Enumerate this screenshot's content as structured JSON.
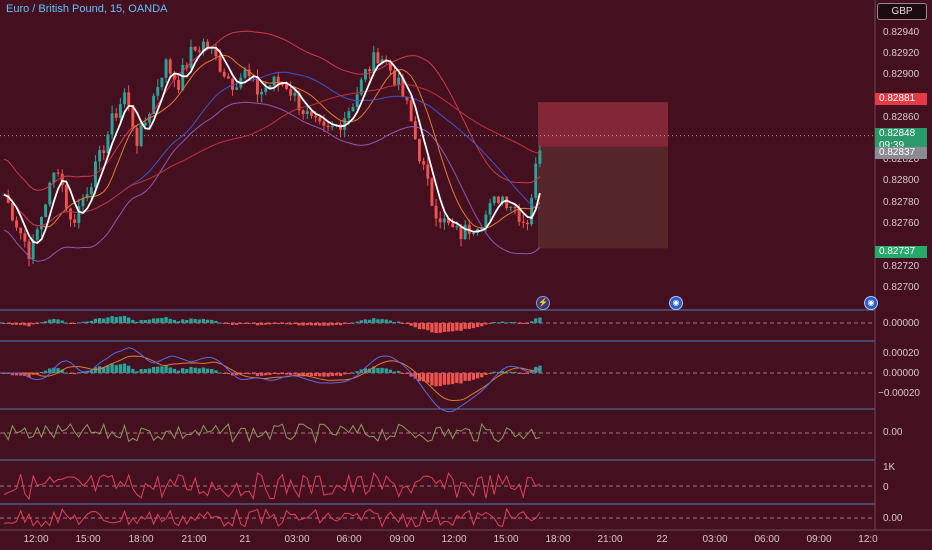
{
  "title": "Euro / British Pound, 15, OANDA",
  "currency_button": "GBP",
  "price_axis": [
    "0.82940",
    "0.82920",
    "0.82900",
    "0.82880",
    "0.82860",
    "0.82840",
    "0.82820",
    "0.82800",
    "0.82780",
    "0.82760",
    "0.82740",
    "0.82720",
    "0.82700"
  ],
  "price_tags": {
    "stop": "0.82881",
    "last": "0.82848",
    "countdown": "09:39",
    "entry": "0.82837",
    "target": "0.82737"
  },
  "panes": {
    "macd1": [
      "0.00000"
    ],
    "macd2": [
      "0.00020",
      "0.00000",
      "−0.00020"
    ],
    "osc3": [
      "0.00"
    ],
    "osc4": [
      "1K",
      "0"
    ],
    "osc5": [
      "0.00"
    ]
  },
  "time_axis": [
    "12:00",
    "15:00",
    "18:00",
    "21:00",
    "21",
    "03:00",
    "06:00",
    "09:00",
    "12:00",
    "15:00",
    "18:00",
    "21:00",
    "22",
    "03:00",
    "06:00",
    "09:00",
    "12:0"
  ],
  "events": [
    "⚡",
    "◉",
    "◉"
  ],
  "colors": {
    "background": "#44101f",
    "bull": "#26a69a",
    "bear": "#ef5350",
    "stop_zone": "#8e2a3d",
    "target_zone": "#5b2a2e"
  },
  "chart_data": {
    "type": "candlestick",
    "title": "Euro / British Pound, 15, OANDA",
    "ylim": [
      0.8269,
      0.8296
    ],
    "close_approx": [
      0.8279,
      0.8276,
      0.8273,
      0.8278,
      0.8282,
      0.8276,
      0.8279,
      0.8282,
      0.8286,
      0.8289,
      0.8284,
      0.8288,
      0.8292,
      0.829,
      0.8293,
      0.8294,
      0.8292,
      0.829,
      0.8291,
      0.8289,
      0.829,
      0.829,
      0.8288,
      0.8286,
      0.8285,
      0.8286,
      0.8288,
      0.8291,
      0.8293,
      0.8291,
      0.8288,
      0.8283,
      0.8278,
      0.8276,
      0.8275,
      0.8276,
      0.8277,
      0.8279,
      0.8278,
      0.8276,
      0.8284
    ],
    "last_price": 0.82848,
    "position": {
      "stop": 0.82881,
      "entry": 0.82837,
      "target": 0.82737
    }
  }
}
